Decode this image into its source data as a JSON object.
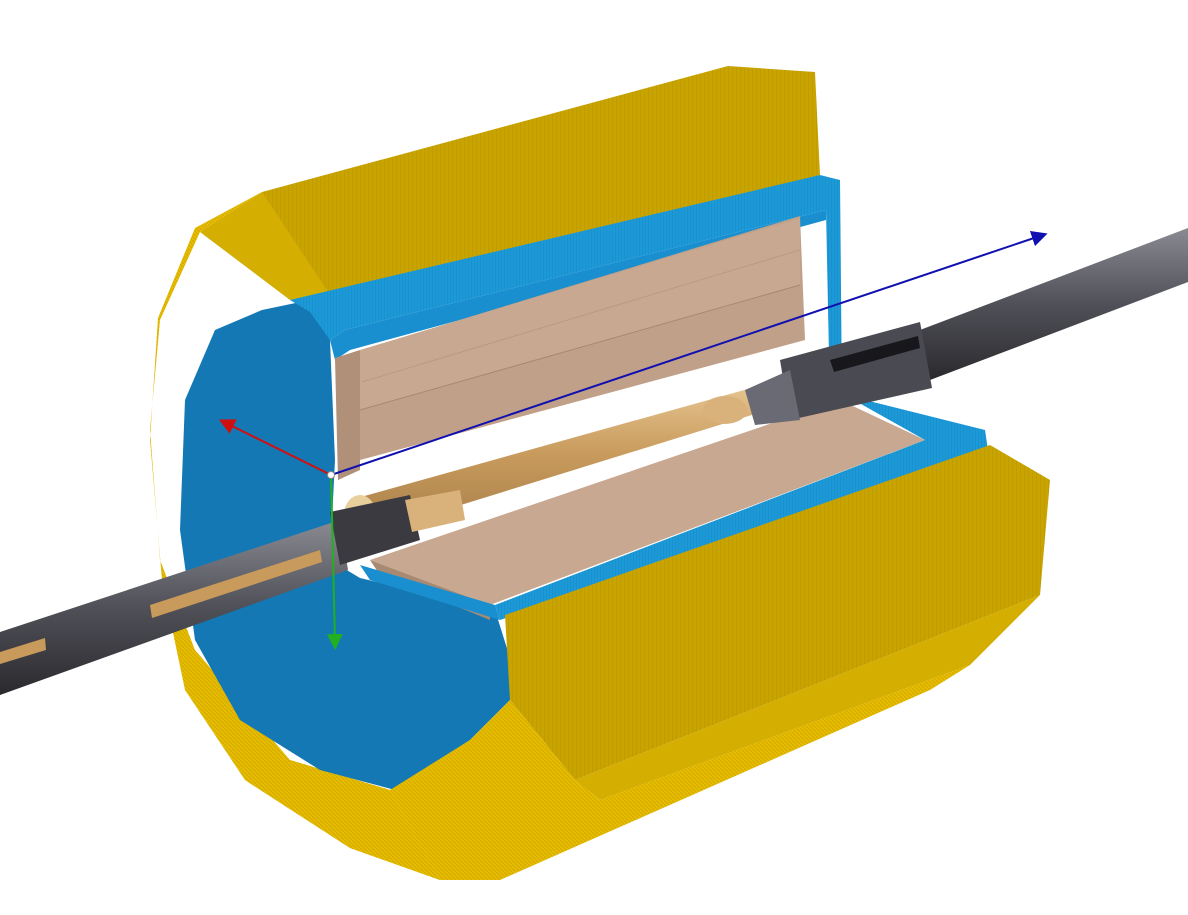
{
  "viewer": {
    "background": "#ffffff",
    "axes": {
      "x": {
        "color": "#d01010",
        "icon": "axis-x-arrow-icon"
      },
      "y": {
        "color": "#20b020",
        "icon": "axis-y-arrow-icon"
      },
      "z": {
        "color": "#1010b0",
        "icon": "axis-z-arrow-icon"
      }
    },
    "materials": {
      "outer_shell": "#c9a400",
      "outer_shell_side": "#e2b800",
      "inner_shield": "#1a8fd0",
      "inner_shield_dark": "#1478b4",
      "core_block": "#c8a88c",
      "core_block_light": "#d9b79c",
      "beam_pipe": "#55555c",
      "beam_pipe_dark": "#2e2e33",
      "inner_components": "#d8b27a"
    }
  }
}
